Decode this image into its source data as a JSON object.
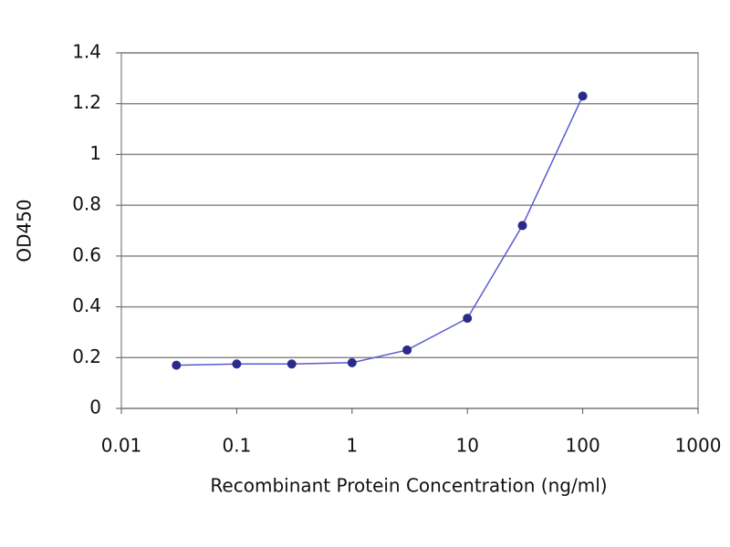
{
  "chart_data": {
    "type": "line",
    "x_label": "Recombinant Protein Concentration (ng/ml)",
    "y_label": "OD450",
    "x": [
      0.03,
      0.1,
      0.3,
      1,
      3,
      10,
      30,
      100
    ],
    "series": [
      {
        "color": "#2a2a8a",
        "values": [
          0.17,
          0.175,
          0.175,
          0.18,
          0.23,
          0.355,
          0.72,
          1.23
        ]
      }
    ],
    "xlim": [
      0.01,
      1000
    ],
    "xticks": [
      0.01,
      0.1,
      1,
      10,
      100,
      1000
    ],
    "log_x": true,
    "ylim": [
      0,
      1.4
    ],
    "yticks": [
      0,
      0.2,
      0.4,
      0.6,
      0.8,
      1,
      1.2,
      1.4
    ],
    "grid": true
  }
}
